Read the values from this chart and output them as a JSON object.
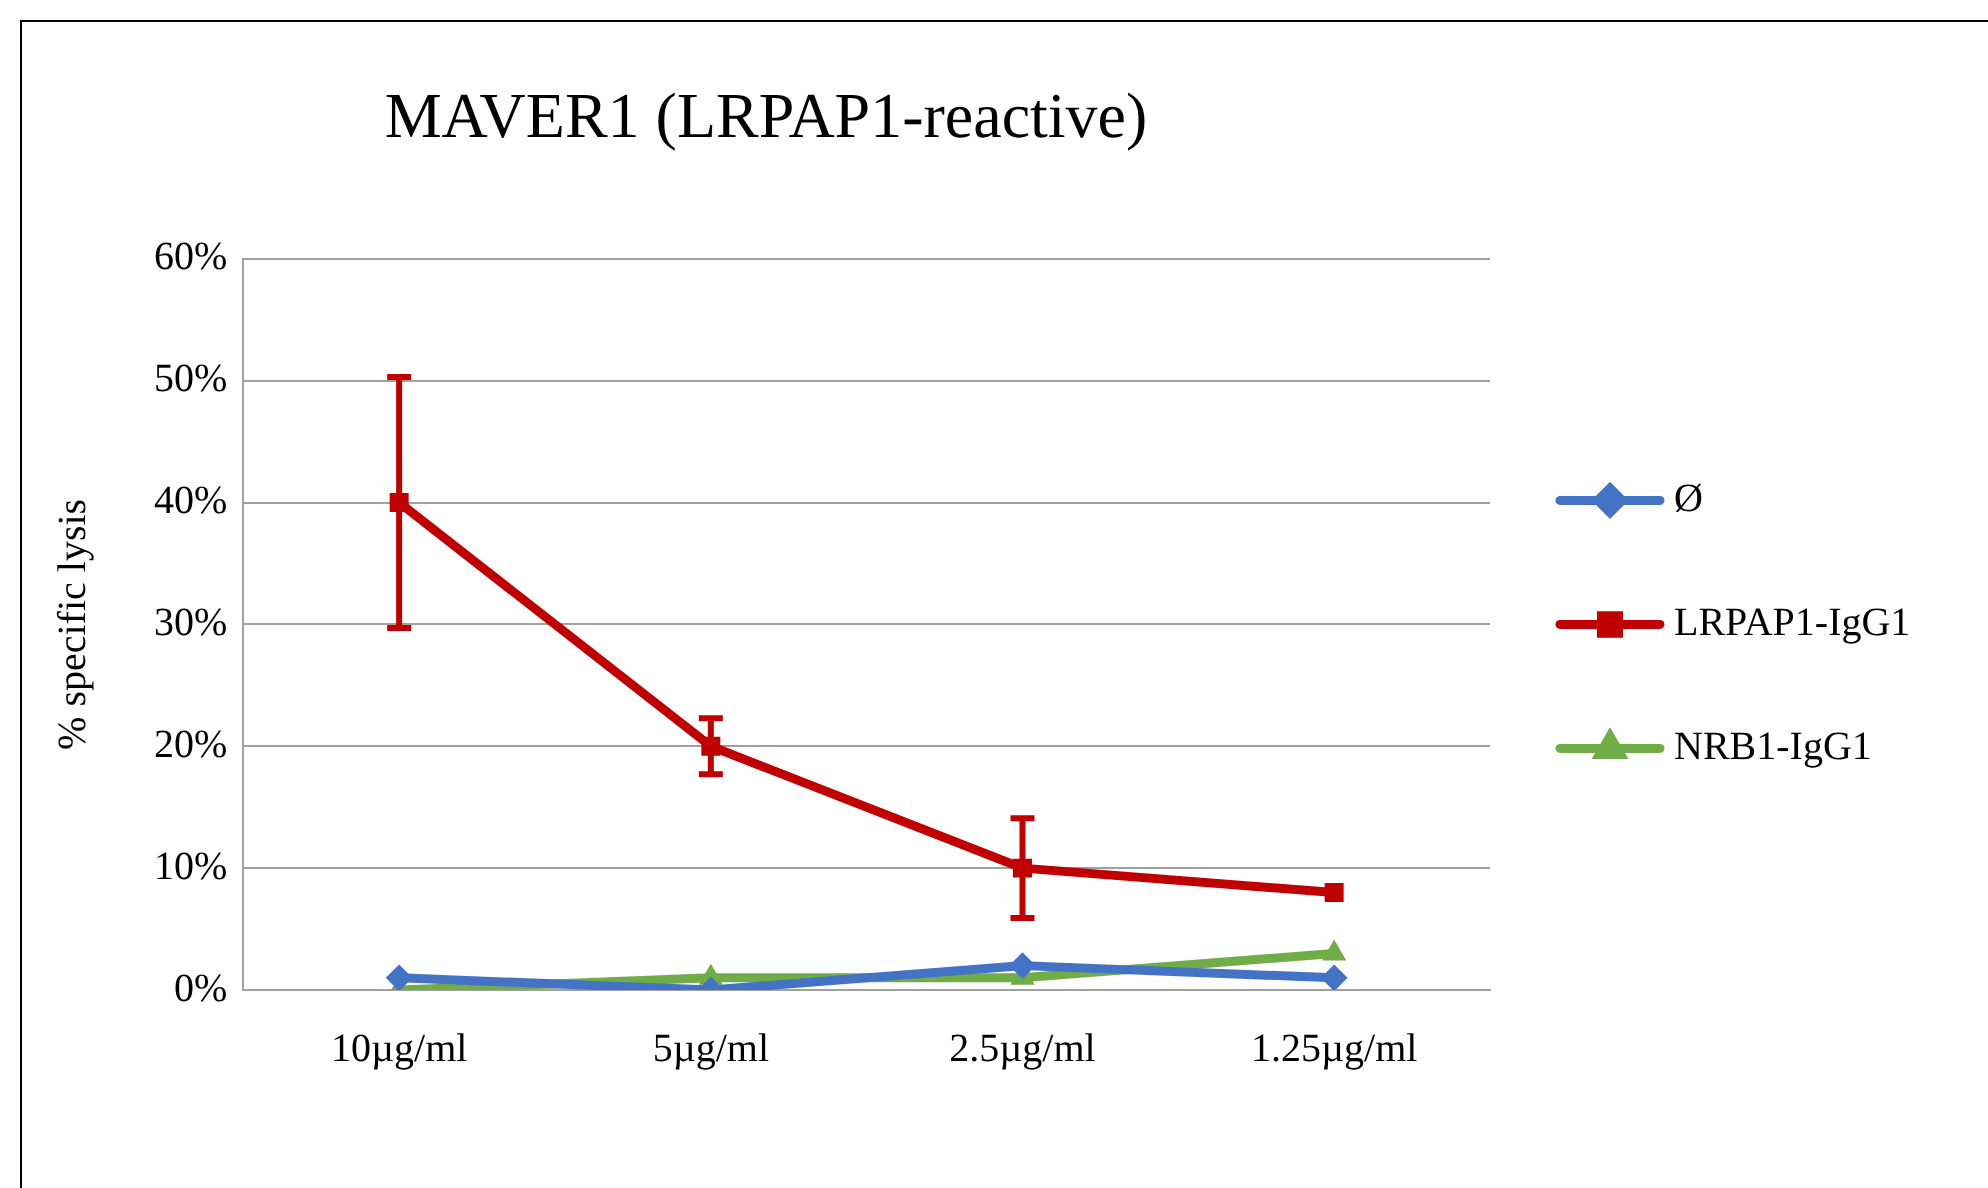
{
  "chart_data": {
    "type": "line",
    "title": "MAVER1 (LRPAP1-reactive)",
    "ylabel": "% specific lysis",
    "categories": [
      "10µg/ml",
      "5µg/ml",
      "2.5µg/ml",
      "1.25µg/ml"
    ],
    "series": [
      {
        "name": "Ø",
        "color": "#4472c4",
        "marker": "diamond",
        "values": [
          1,
          0,
          2,
          1
        ]
      },
      {
        "name": "LRPAP1-IgG1",
        "color": "#c00000",
        "marker": "square",
        "values": [
          40,
          20,
          10,
          8
        ],
        "errors": [
          10.3,
          2.3,
          4.1,
          null
        ]
      },
      {
        "name": "NRB1-IgG1",
        "color": "#70ad47",
        "marker": "triangle",
        "values": [
          0,
          1,
          1,
          3
        ]
      }
    ],
    "ylim": [
      0,
      60
    ],
    "yticks": [
      {
        "value": 0,
        "label": "0%"
      },
      {
        "value": 10,
        "label": "10%"
      },
      {
        "value": 20,
        "label": "20%"
      },
      {
        "value": 30,
        "label": "30%"
      },
      {
        "value": 40,
        "label": "40%"
      },
      {
        "value": 50,
        "label": "50%"
      },
      {
        "value": 60,
        "label": "60%"
      }
    ],
    "grid": "y",
    "legend": "right"
  }
}
